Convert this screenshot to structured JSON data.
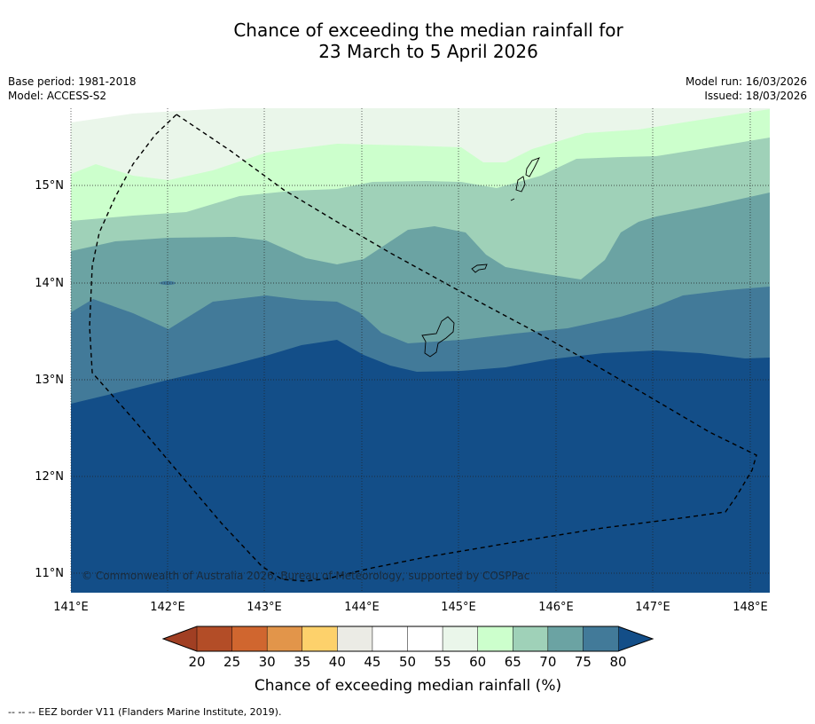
{
  "title_line1": "Chance of exceeding the median rainfall for",
  "title_line2": "23 March to 5 April 2026",
  "base_period": "Base period: 1981-2018",
  "model": "Model: ACCESS-S2",
  "model_run": "Model run: 16/03/2026",
  "issued": "Issued: 18/03/2026",
  "copyright": "© Commonwealth of Australia 2026, Bureau of Meteorology, supported by COSPPac",
  "footnote": "--  --  -- EEZ border V11 (Flanders Marine Institute, 2019).",
  "lon_labels": [
    "141°E",
    "142°E",
    "143°E",
    "144°E",
    "145°E",
    "146°E",
    "147°E",
    "148°E"
  ],
  "lat_labels": [
    "15°N",
    "14°N",
    "13°N",
    "12°N",
    "11°N"
  ],
  "colorbar": {
    "title": "Chance of exceeding median rainfall (%)",
    "ticks": [
      "20",
      "25",
      "30",
      "35",
      "40",
      "45",
      "50",
      "55",
      "60",
      "65",
      "70",
      "75",
      "80"
    ],
    "colors": [
      "#b34d27",
      "#d0662f",
      "#e2954a",
      "#fdd16b",
      "#ebebe5",
      "#ffffff",
      "#ffffff",
      "#eaf6ea",
      "#ccffcc",
      "#9fd1b8",
      "#6ba3a3",
      "#427a99",
      "#134e88"
    ],
    "under_color": "#a13f23",
    "over_color": "#134e88"
  },
  "band_colors": {
    "55-60": "#eaf6ea",
    "60-65": "#ccffcc",
    "65-70": "#9fd1b8",
    "70-75": "#6ba3a3",
    "75-80": "#427a99",
    ">80": "#134e88"
  }
}
